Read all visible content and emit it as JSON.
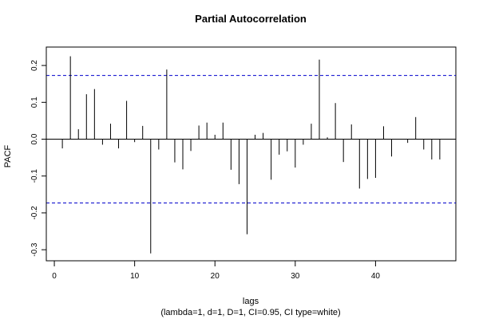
{
  "chart_data": {
    "type": "bar",
    "title": "Partial Autocorrelation",
    "xlabel": "lags",
    "subtitle": "(lambda=1, d=1, D=1, CI=0.95, CI type=white)",
    "ylabel": "PACF",
    "xlim": [
      -1,
      50
    ],
    "ylim": [
      -0.33,
      0.25
    ],
    "xticks": [
      0,
      10,
      20,
      30,
      40
    ],
    "yticks": [
      -0.3,
      -0.2,
      -0.1,
      0.0,
      0.1,
      0.2
    ],
    "ytick_labels": [
      "-0.3",
      "-0.2",
      "-0.1",
      "0.0",
      "0.1",
      "0.2"
    ],
    "ci": [
      0.173,
      -0.173
    ],
    "ci_color": "#0000cc",
    "bar_color": "#000000",
    "lags": [
      1,
      2,
      3,
      4,
      5,
      6,
      7,
      8,
      9,
      10,
      11,
      12,
      13,
      14,
      15,
      16,
      17,
      18,
      19,
      20,
      21,
      22,
      23,
      24,
      25,
      26,
      27,
      28,
      29,
      30,
      31,
      32,
      33,
      34,
      35,
      36,
      37,
      38,
      39,
      40,
      41,
      42,
      43,
      44,
      45,
      46,
      47,
      48
    ],
    "values": [
      -0.025,
      0.225,
      0.027,
      0.122,
      0.136,
      -0.015,
      0.042,
      -0.025,
      0.104,
      -0.008,
      0.036,
      -0.31,
      -0.028,
      0.189,
      -0.063,
      -0.082,
      -0.032,
      0.037,
      0.045,
      0.012,
      0.045,
      -0.083,
      -0.122,
      -0.258,
      0.012,
      0.017,
      -0.11,
      -0.042,
      -0.033,
      -0.077,
      -0.015,
      0.042,
      0.216,
      0.005,
      0.098,
      -0.062,
      0.04,
      -0.134,
      -0.108,
      -0.105,
      0.035,
      -0.047,
      0.0,
      -0.01,
      0.06,
      -0.028,
      -0.055,
      -0.055
    ]
  }
}
